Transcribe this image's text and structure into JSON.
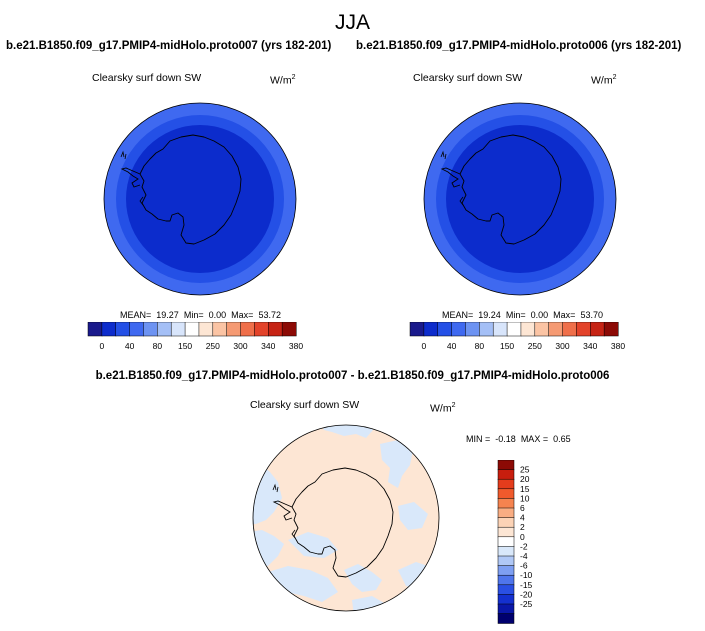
{
  "main_title": "JJA",
  "colors": {
    "outer_ring": "#3f69f0",
    "middle_ring": "#2450e6",
    "inner_disk": "#0c2ccc",
    "diff_positive": "#fde6d4",
    "diff_negative": "#d9e8fa",
    "coast": "#000000"
  },
  "panels": [
    {
      "case_title": "b.e21.B1850.f09_g17.PMIP4-midHolo.proto007 (yrs 182-201)",
      "var_title": "Clearsky surf down SW",
      "units": "W/m",
      "units_exp": "2",
      "stats": {
        "mean_label": "MEAN=",
        "mean": "19.27",
        "min_label": "Min=",
        "min": "0.00",
        "max_label": "Max=",
        "max": "53.72"
      }
    },
    {
      "case_title": "b.e21.B1850.f09_g17.PMIP4-midHolo.proto006 (yrs 182-201)",
      "var_title": "Clearsky surf down SW",
      "units": "W/m",
      "units_exp": "2",
      "stats": {
        "mean_label": "MEAN=",
        "mean": "19.24",
        "min_label": "Min=",
        "min": "0.00",
        "max_label": "Max=",
        "max": "53.70"
      }
    }
  ],
  "diff_panel": {
    "title": "b.e21.B1850.f09_g17.PMIP4-midHolo.proto007 - b.e21.B1850.f09_g17.PMIP4-midHolo.proto006",
    "var_title": "Clearsky surf down SW",
    "units": "W/m",
    "units_exp": "2",
    "stats": {
      "min_label": "MIN =",
      "min": "-0.18",
      "max_label": "MAX =",
      "max": "0.65"
    }
  },
  "chart_data": [
    {
      "type": "heatmap",
      "projection": "south-polar-stereographic",
      "colorbar": {
        "orientation": "horizontal",
        "colors": [
          "#1a1a8c",
          "#0d2ccc",
          "#2450e6",
          "#3f69f0",
          "#6d93f2",
          "#a4bff6",
          "#d8e5fb",
          "#ffffff",
          "#fde6d4",
          "#fbc4a4",
          "#f59a73",
          "#ef6f4a",
          "#e3432a",
          "#c62314",
          "#8c0a05"
        ],
        "tick_labels": [
          "0",
          "40",
          "80",
          "150",
          "250",
          "300",
          "340",
          "380"
        ]
      }
    },
    {
      "type": "heatmap",
      "projection": "south-polar-stereographic",
      "colorbar": {
        "orientation": "horizontal",
        "colors": [
          "#1a1a8c",
          "#0d2ccc",
          "#2450e6",
          "#3f69f0",
          "#6d93f2",
          "#a4bff6",
          "#d8e5fb",
          "#ffffff",
          "#fde6d4",
          "#fbc4a4",
          "#f59a73",
          "#ef6f4a",
          "#e3432a",
          "#c62314",
          "#8c0a05"
        ],
        "tick_labels": [
          "0",
          "40",
          "80",
          "150",
          "250",
          "300",
          "340",
          "380"
        ]
      }
    },
    {
      "type": "heatmap",
      "projection": "south-polar-stereographic",
      "colorbar": {
        "orientation": "vertical",
        "colors": [
          "#8c0a05",
          "#c81e0e",
          "#e43c1c",
          "#f05a2c",
          "#f5834f",
          "#f9ad83",
          "#fcd3b6",
          "#fde6d4",
          "#ffffff",
          "#d9e8fa",
          "#b0c8f6",
          "#7e9ff2",
          "#4f75ec",
          "#2a4fe3",
          "#1430cf",
          "#0a17a8",
          "#00006e"
        ],
        "tick_labels": [
          "25",
          "20",
          "15",
          "10",
          "6",
          "4",
          "2",
          "0",
          "-2",
          "-4",
          "-6",
          "-10",
          "-15",
          "-20",
          "-25"
        ]
      }
    }
  ]
}
